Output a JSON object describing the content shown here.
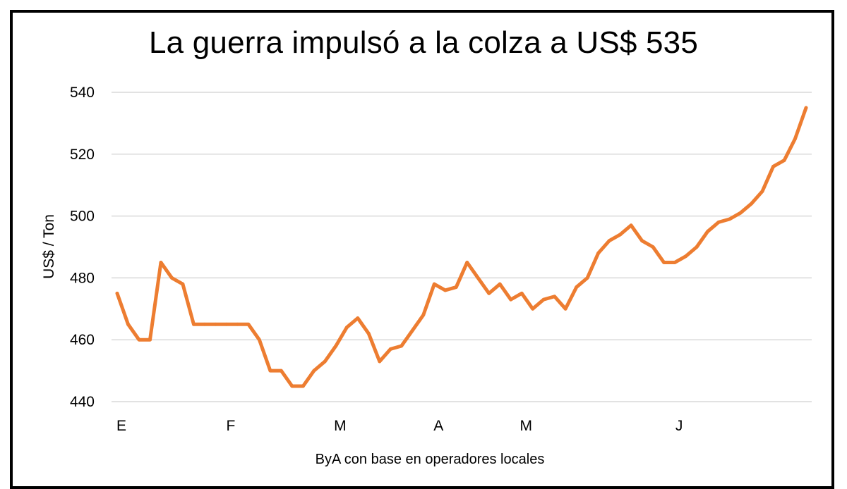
{
  "chart_data": {
    "type": "line",
    "title": "La guerra impulsó a la colza a US$ 535",
    "ylabel": "US$ / Ton",
    "xlabel": "",
    "source": "ByA con base en  operadores locales",
    "ylim": [
      440,
      540
    ],
    "yticks": [
      440,
      460,
      480,
      500,
      520,
      540
    ],
    "grid": true,
    "legend": "none",
    "line_color": "#ED7D31",
    "grid_color": "#D9D9D9",
    "month_labels": [
      {
        "label": "E",
        "index": 0
      },
      {
        "label": "F",
        "index": 10
      },
      {
        "label": "M",
        "index": 20
      },
      {
        "label": "A",
        "index": 29
      },
      {
        "label": "M",
        "index": 37
      },
      {
        "label": "J",
        "index": 51
      }
    ],
    "series": [
      {
        "values": [
          475,
          465,
          460,
          460,
          485,
          480,
          478,
          465,
          465,
          465,
          465,
          465,
          465,
          460,
          450,
          450,
          445,
          445,
          450,
          453,
          458,
          464,
          467,
          462,
          453,
          457,
          458,
          463,
          468,
          478,
          476,
          477,
          485,
          480,
          475,
          478,
          473,
          475,
          470,
          473,
          474,
          470,
          477,
          480,
          488,
          492,
          494,
          497,
          492,
          490,
          485,
          485,
          487,
          490,
          495,
          498,
          499,
          501,
          504,
          508,
          516,
          518,
          525,
          535
        ]
      }
    ]
  }
}
